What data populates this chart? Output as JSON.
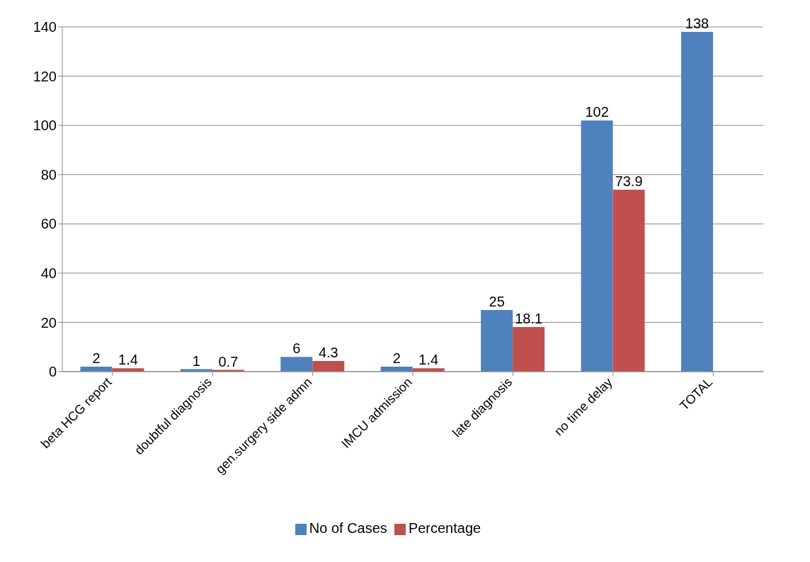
{
  "chart_data": {
    "type": "bar",
    "categories": [
      "beta HCG report",
      "doubtful diagnosis",
      "gen.surgery side admn",
      "IMCU admission",
      "late diagnosis",
      "no time delay",
      "TOTAL"
    ],
    "series": [
      {
        "name": "No of Cases",
        "color": "#4f81bd",
        "values": [
          2,
          1,
          6,
          2,
          25,
          102,
          138
        ]
      },
      {
        "name": "Percentage",
        "color": "#c0504d",
        "values": [
          1.4,
          0.7,
          4.3,
          1.4,
          18.1,
          73.9,
          null
        ]
      }
    ],
    "ylim": [
      0,
      140
    ],
    "yticks": [
      0,
      20,
      40,
      60,
      80,
      100,
      120,
      140
    ],
    "grid": "y",
    "legend": "bottom",
    "data_labels": true
  }
}
